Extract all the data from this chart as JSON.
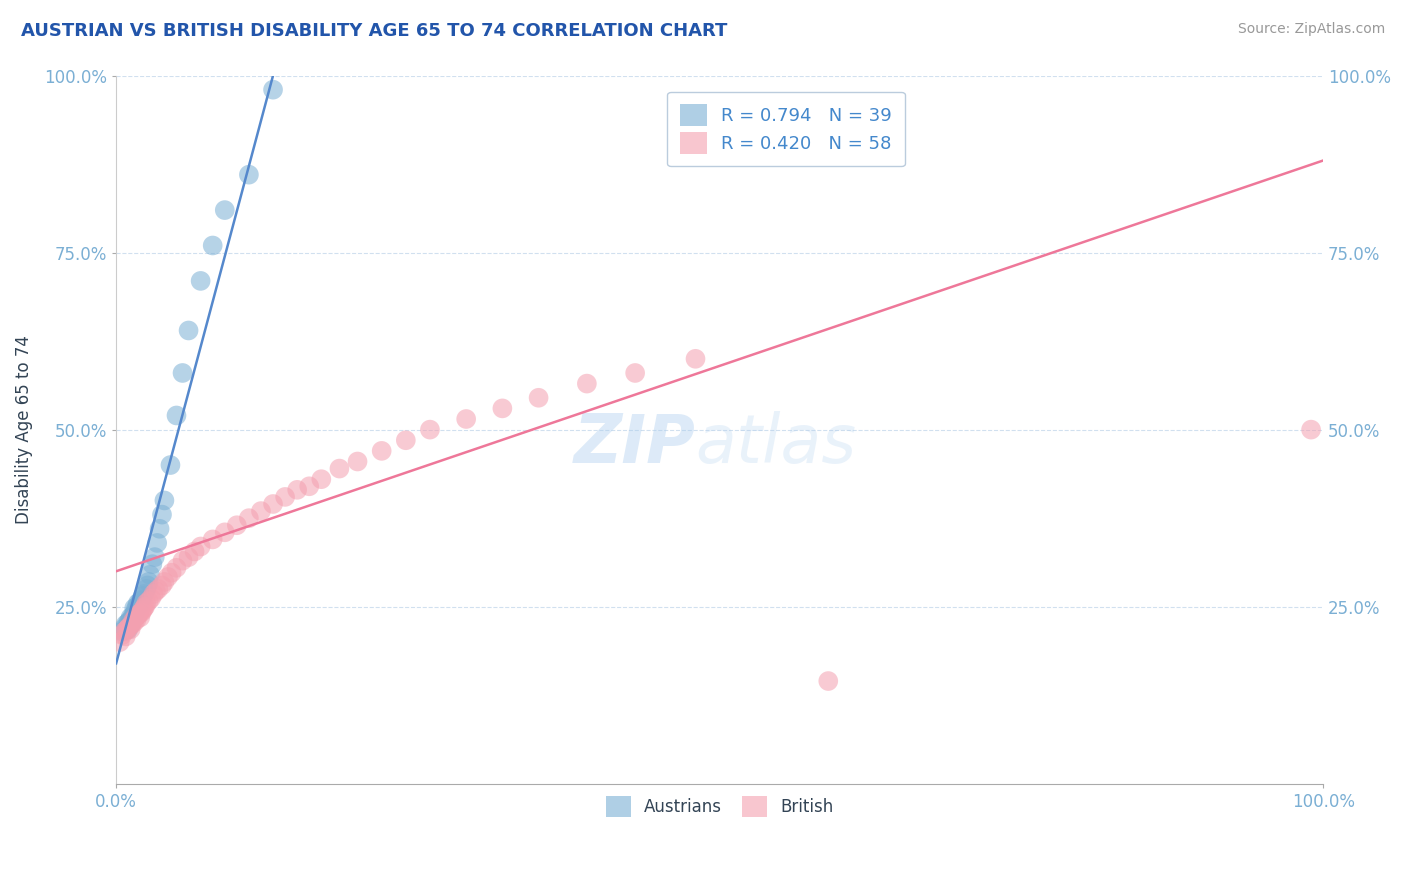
{
  "title": "AUSTRIAN VS BRITISH DISABILITY AGE 65 TO 74 CORRELATION CHART",
  "source_text": "Source: ZipAtlas.com",
  "ylabel": "Disability Age 65 to 74",
  "xlim": [
    0.0,
    1.0
  ],
  "ylim": [
    0.0,
    1.0
  ],
  "ytick_vals": [
    0.25,
    0.5,
    0.75,
    1.0
  ],
  "ytick_labels": [
    "25.0%",
    "50.0%",
    "75.0%",
    "100.0%"
  ],
  "xtick_vals": [
    0.0,
    1.0
  ],
  "xtick_labels": [
    "0.0%",
    "100.0%"
  ],
  "austrian_color": "#7BAFD4",
  "british_color": "#F4A0B0",
  "line_color_austrian": "#5588CC",
  "line_color_british": "#EE7799",
  "R_austrian": 0.794,
  "N_austrian": 39,
  "R_british": 0.42,
  "N_british": 58,
  "legend_label_austrian": "Austrians",
  "legend_label_british": "British",
  "watermark_zip": "ZIP",
  "watermark_atlas": "atlas",
  "title_color": "#2255AA",
  "axis_label_color": "#334455",
  "tick_color": "#7BAFD4",
  "legend_R_color": "#4488CC",
  "austrian_x": [
    0.005,
    0.007,
    0.008,
    0.01,
    0.01,
    0.011,
    0.012,
    0.012,
    0.013,
    0.014,
    0.015,
    0.015,
    0.016,
    0.017,
    0.018,
    0.019,
    0.02,
    0.021,
    0.022,
    0.023,
    0.025,
    0.026,
    0.027,
    0.028,
    0.03,
    0.032,
    0.034,
    0.036,
    0.038,
    0.04,
    0.045,
    0.05,
    0.055,
    0.06,
    0.07,
    0.08,
    0.09,
    0.11,
    0.13
  ],
  "austrian_y": [
    0.215,
    0.22,
    0.225,
    0.218,
    0.228,
    0.23,
    0.225,
    0.235,
    0.232,
    0.238,
    0.24,
    0.248,
    0.245,
    0.25,
    0.255,
    0.252,
    0.258,
    0.26,
    0.265,
    0.268,
    0.275,
    0.28,
    0.285,
    0.295,
    0.31,
    0.32,
    0.34,
    0.36,
    0.38,
    0.4,
    0.45,
    0.52,
    0.58,
    0.64,
    0.71,
    0.76,
    0.81,
    0.86,
    0.98
  ],
  "british_x": [
    0.003,
    0.005,
    0.007,
    0.008,
    0.009,
    0.01,
    0.011,
    0.012,
    0.013,
    0.014,
    0.015,
    0.016,
    0.017,
    0.018,
    0.019,
    0.02,
    0.021,
    0.022,
    0.023,
    0.024,
    0.025,
    0.027,
    0.029,
    0.031,
    0.033,
    0.035,
    0.038,
    0.04,
    0.043,
    0.046,
    0.05,
    0.055,
    0.06,
    0.065,
    0.07,
    0.08,
    0.09,
    0.1,
    0.11,
    0.12,
    0.13,
    0.14,
    0.15,
    0.16,
    0.17,
    0.185,
    0.2,
    0.22,
    0.24,
    0.26,
    0.29,
    0.32,
    0.35,
    0.39,
    0.43,
    0.48,
    0.59,
    0.99
  ],
  "british_y": [
    0.2,
    0.21,
    0.215,
    0.208,
    0.218,
    0.22,
    0.222,
    0.218,
    0.225,
    0.23,
    0.228,
    0.235,
    0.232,
    0.238,
    0.24,
    0.235,
    0.242,
    0.245,
    0.248,
    0.25,
    0.255,
    0.258,
    0.262,
    0.268,
    0.272,
    0.275,
    0.28,
    0.285,
    0.292,
    0.298,
    0.305,
    0.315,
    0.32,
    0.328,
    0.335,
    0.345,
    0.355,
    0.365,
    0.375,
    0.385,
    0.395,
    0.405,
    0.415,
    0.42,
    0.43,
    0.445,
    0.455,
    0.47,
    0.485,
    0.5,
    0.515,
    0.53,
    0.545,
    0.565,
    0.58,
    0.6,
    0.145,
    0.5
  ],
  "blue_line_x0": 0.0,
  "blue_line_y0": 0.17,
  "blue_line_x1": 0.13,
  "blue_line_y1": 1.0,
  "pink_line_x0": 0.0,
  "pink_line_y0": 0.3,
  "pink_line_x1": 1.0,
  "pink_line_y1": 0.88
}
